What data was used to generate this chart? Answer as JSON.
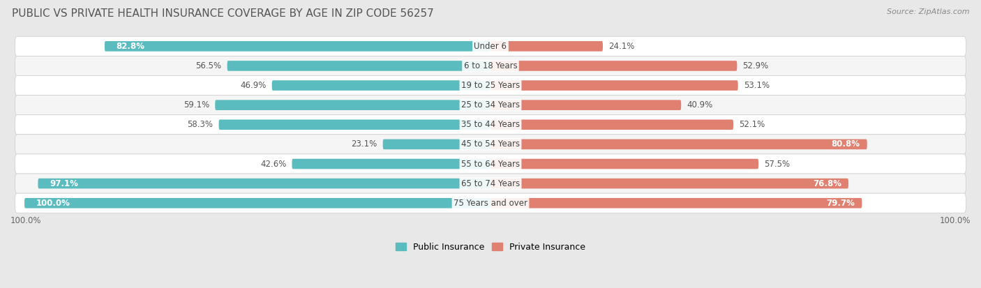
{
  "title": "PUBLIC VS PRIVATE HEALTH INSURANCE COVERAGE BY AGE IN ZIP CODE 56257",
  "source": "Source: ZipAtlas.com",
  "categories": [
    "Under 6",
    "6 to 18 Years",
    "19 to 25 Years",
    "25 to 34 Years",
    "35 to 44 Years",
    "45 to 54 Years",
    "55 to 64 Years",
    "65 to 74 Years",
    "75 Years and over"
  ],
  "public_values": [
    82.8,
    56.5,
    46.9,
    59.1,
    58.3,
    23.1,
    42.6,
    97.1,
    100.0
  ],
  "private_values": [
    24.1,
    52.9,
    53.1,
    40.9,
    52.1,
    80.8,
    57.5,
    76.8,
    79.7
  ],
  "public_color": "#5bbcbf",
  "private_color": "#e08070",
  "background_color": "#e8e8e8",
  "row_bg_even": "#f5f5f5",
  "row_bg_odd": "#ffffff",
  "bar_height": 0.52,
  "title_fontsize": 11,
  "label_fontsize": 8.5,
  "category_fontsize": 8.5,
  "legend_fontsize": 9,
  "source_fontsize": 8,
  "axis_scale": 100.0
}
